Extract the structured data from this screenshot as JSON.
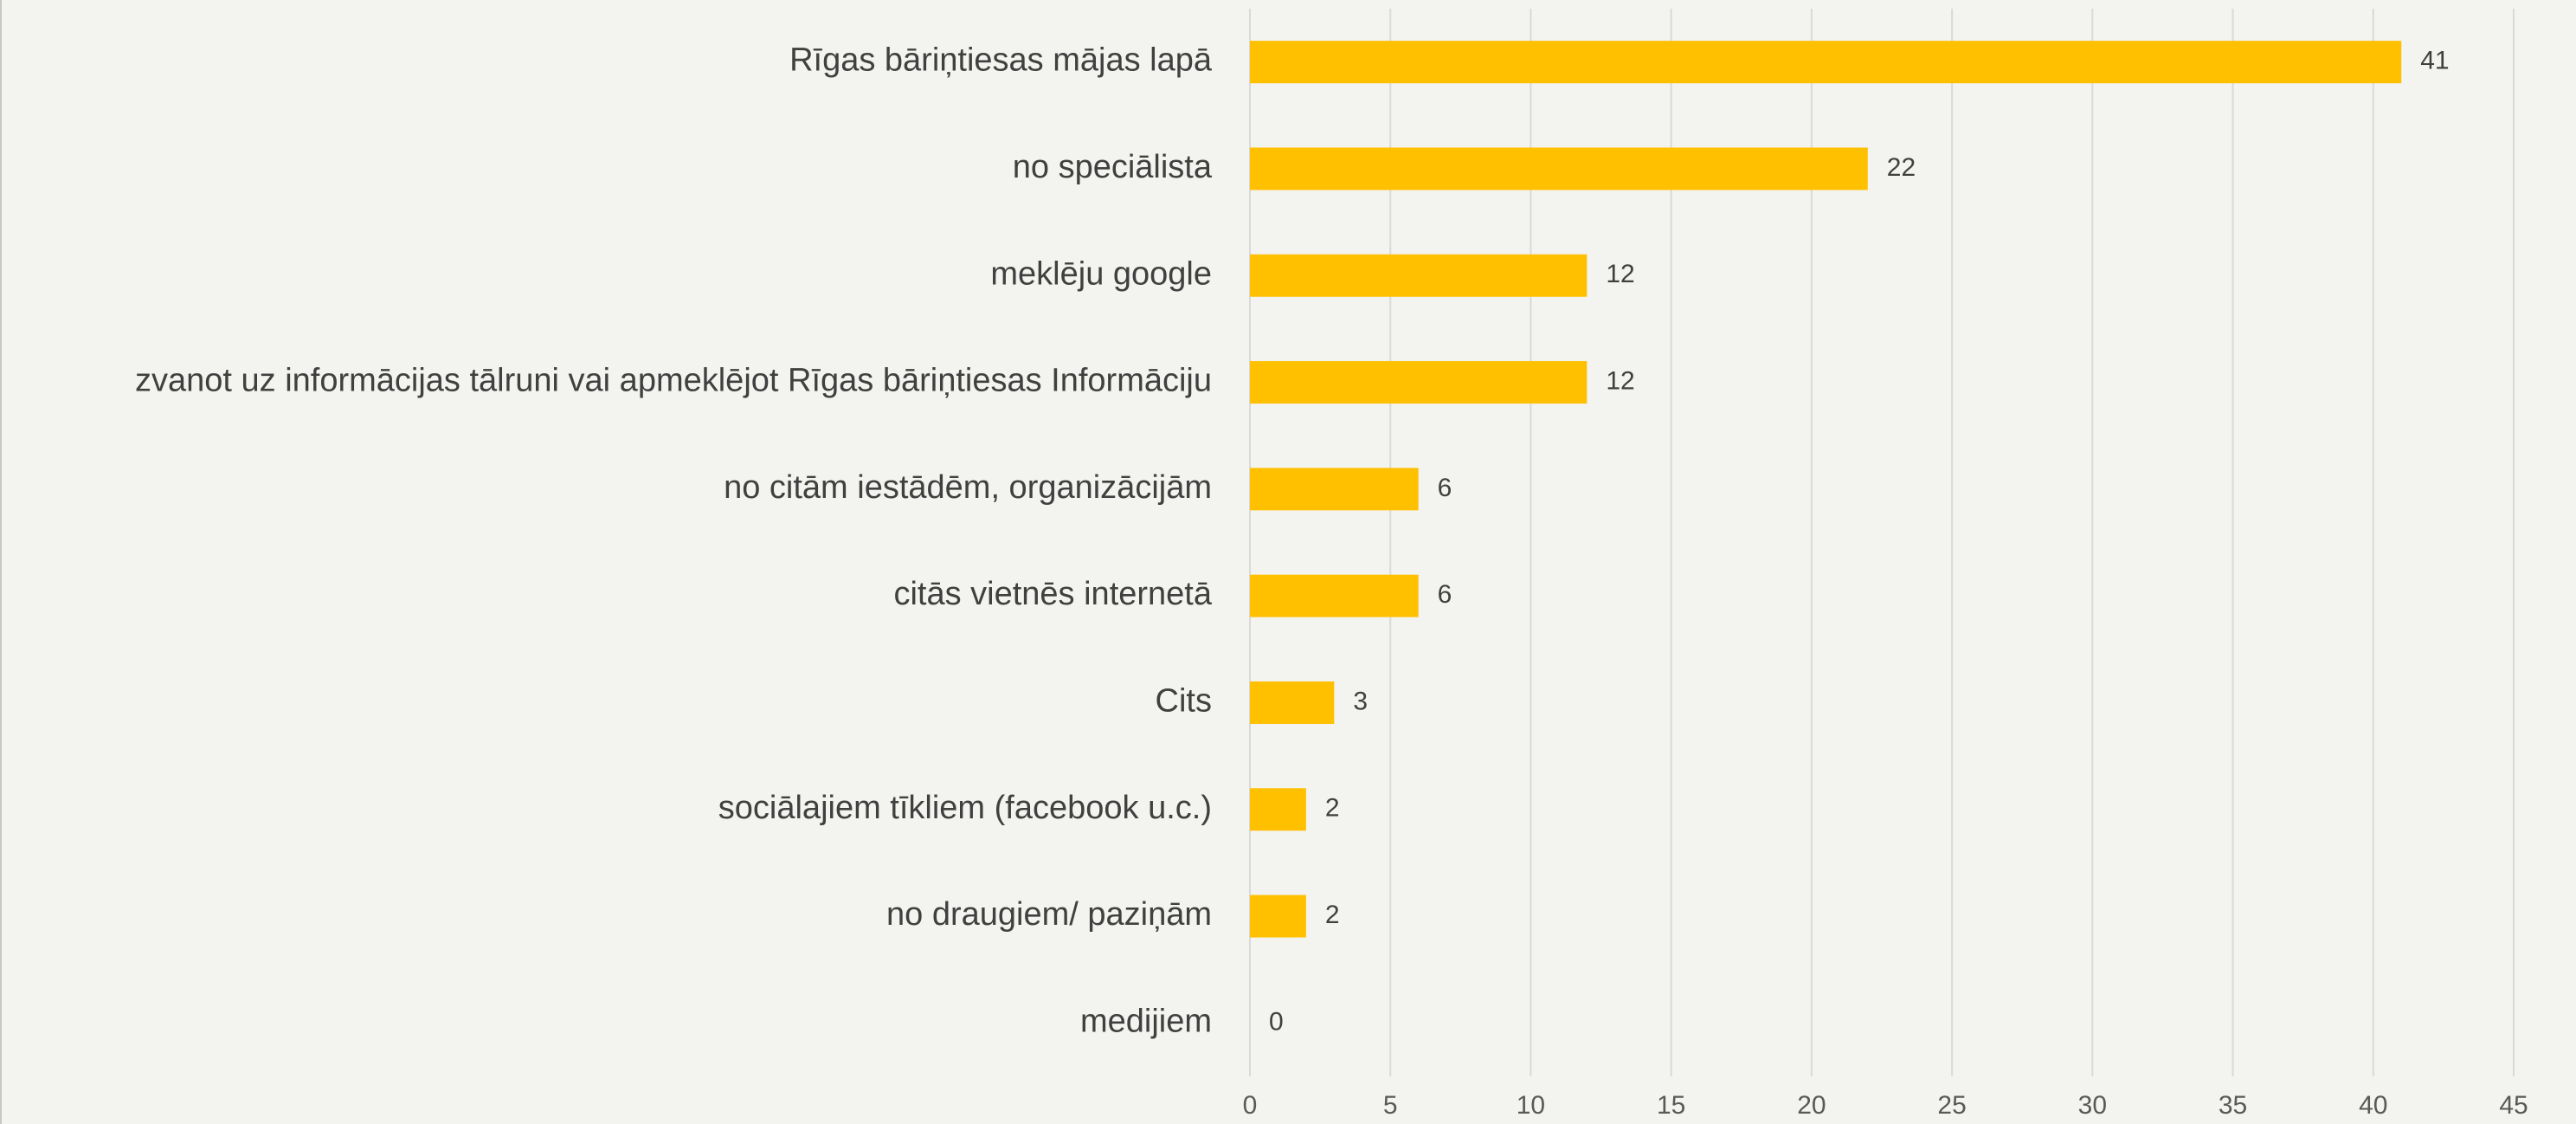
{
  "chart_data": {
    "type": "bar",
    "orientation": "horizontal",
    "categories": [
      "Rīgas bāriņtiesas mājas lapā",
      "no speciālista",
      "meklēju google",
      "zvanot uz informācijas tālruni vai apmeklējot Rīgas bāriņtiesas Informāciju",
      "no citām iestādēm, organizācijām",
      "citās vietnēs internetā",
      "Cits",
      "sociālajiem tīkliem (facebook u.c.)",
      "no draugiem/ paziņām",
      "medijiem"
    ],
    "values": [
      41,
      22,
      12,
      12,
      6,
      6,
      3,
      2,
      2,
      0
    ],
    "color": "#ffc000",
    "xlim": [
      0,
      45
    ],
    "xticks": [
      0,
      5,
      10,
      15,
      20,
      25,
      30,
      35,
      40,
      45
    ],
    "grid": true
  }
}
